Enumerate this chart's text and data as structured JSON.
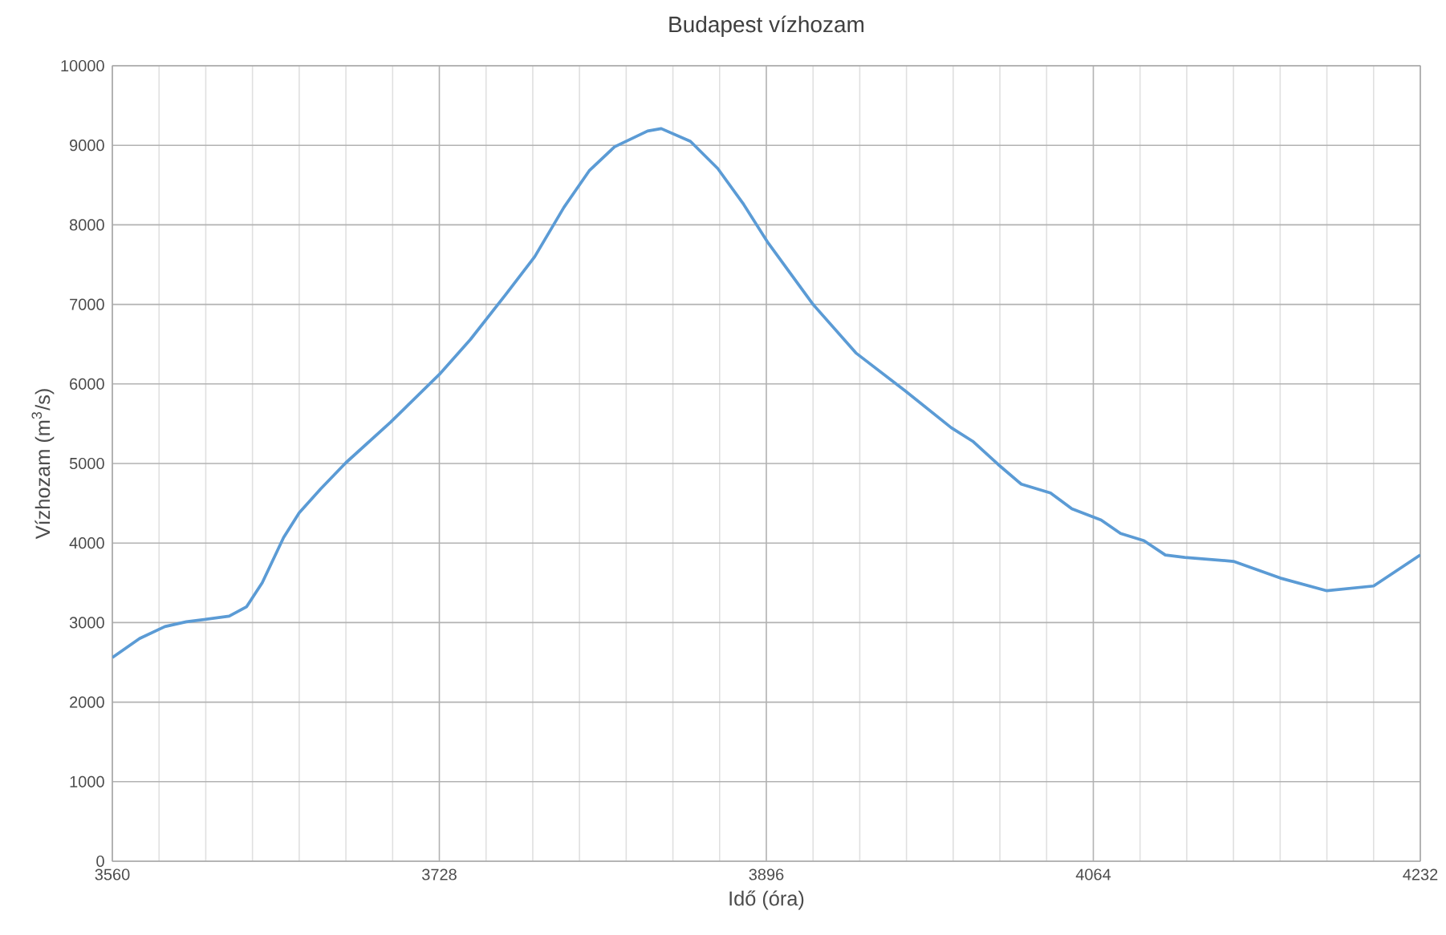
{
  "chart_data": {
    "type": "line",
    "title": "Budapest vízhozam",
    "xlabel": "Idő (óra)",
    "ylabel": "Vízhozam (m$^{3}$/s)",
    "xlim": [
      3560,
      4232
    ],
    "ylim": [
      0,
      10000
    ],
    "xticks": [
      3560,
      {
        "value": 3584,
        "label": null
      },
      {
        "value": 3608,
        "label": null
      },
      {
        "value": 3632,
        "label": null
      },
      {
        "value": 3656,
        "label": null
      },
      {
        "value": 3680,
        "label": null
      },
      {
        "value": 3704,
        "label": null
      },
      3728,
      {
        "value": 3752,
        "label": null
      },
      {
        "value": 3776,
        "label": null
      },
      {
        "value": 3800,
        "label": null
      },
      {
        "value": 3824,
        "label": null
      },
      {
        "value": 3848,
        "label": null
      },
      {
        "value": 3872,
        "label": null
      },
      3896,
      {
        "value": 3920,
        "label": null
      },
      {
        "value": 3944,
        "label": null
      },
      {
        "value": 3968,
        "label": null
      },
      {
        "value": 3992,
        "label": null
      },
      {
        "value": 4016,
        "label": null
      },
      {
        "value": 4040,
        "label": null
      },
      4064,
      {
        "value": 4088,
        "label": null
      },
      {
        "value": 4112,
        "label": null
      },
      {
        "value": 4136,
        "label": null
      },
      {
        "value": 4160,
        "label": null
      },
      {
        "value": 4184,
        "label": null
      },
      {
        "value": 4208,
        "label": null
      },
      4232
    ],
    "yticks": [
      0,
      1000,
      2000,
      3000,
      4000,
      5000,
      6000,
      7000,
      8000,
      9000,
      10000
    ],
    "grid": true,
    "marker": "none",
    "line_style": "solid",
    "x": [
      3560,
      3574,
      3587,
      3598,
      3620,
      3629,
      3637,
      3648,
      3656,
      3667,
      3680,
      3703,
      3728,
      3744,
      3762,
      3777,
      3792,
      3805,
      3818,
      3835,
      3842,
      3857,
      3871,
      3884,
      3897,
      3920,
      3942,
      3967,
      3991,
      4002,
      4015,
      4027,
      4042,
      4053,
      4068,
      4078,
      4090,
      4101,
      4111,
      4136,
      4160,
      4184,
      4208,
      4232
    ],
    "series": [
      {
        "color": "#5b9bd5",
        "values": [
          2560,
          2800,
          2950,
          3010,
          3080,
          3200,
          3500,
          4070,
          4380,
          4680,
          5010,
          5520,
          6120,
          6560,
          7120,
          7600,
          8220,
          8680,
          8980,
          9180,
          9210,
          9050,
          8710,
          8270,
          7770,
          7000,
          6390,
          5920,
          5450,
          5280,
          4990,
          4740,
          4630,
          4430,
          4290,
          4120,
          4030,
          3850,
          3820,
          3770,
          3560,
          3400,
          3460,
          3850
        ]
      }
    ]
  }
}
